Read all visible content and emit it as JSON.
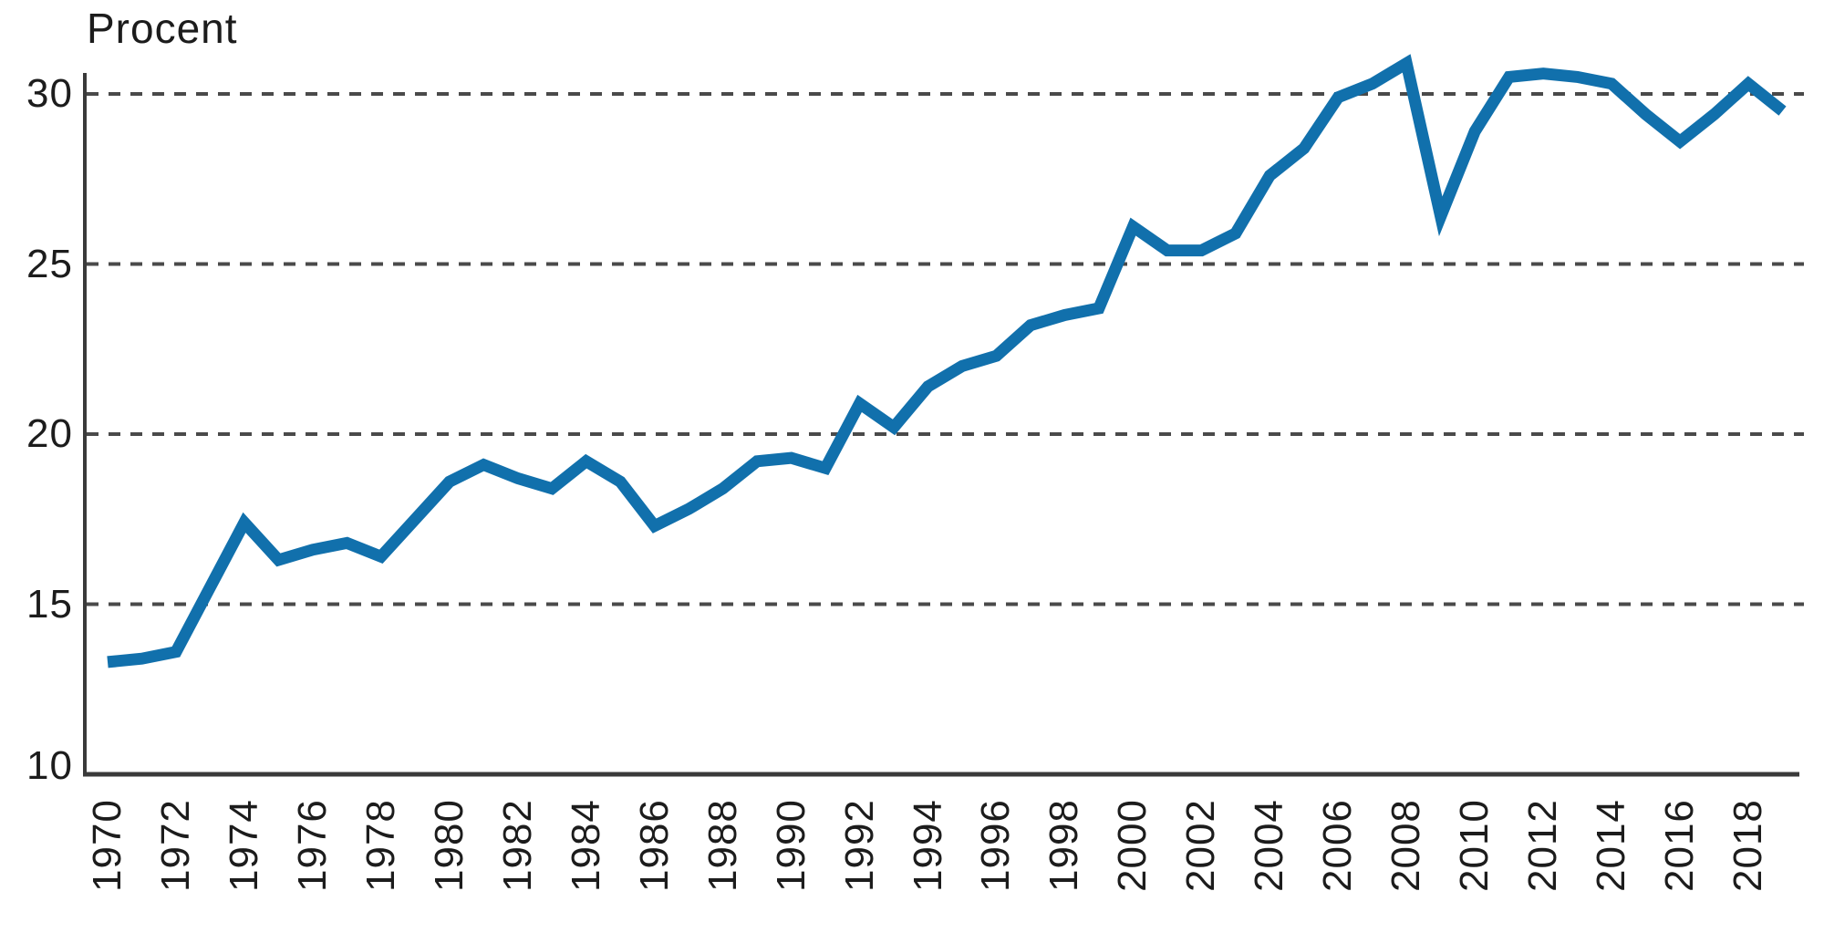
{
  "colors": {
    "line": "#1170AC",
    "axis": "#3A3A3A",
    "grid": "#4A4A4A",
    "text": "#1C1C1C",
    "background": "#FFFFFF"
  },
  "chart_data": {
    "type": "line",
    "title": "Procent",
    "xlabel": "",
    "ylabel": "Procent",
    "x": [
      1970,
      1971,
      1972,
      1973,
      1974,
      1975,
      1976,
      1977,
      1978,
      1979,
      1980,
      1981,
      1982,
      1983,
      1984,
      1985,
      1986,
      1987,
      1988,
      1989,
      1990,
      1991,
      1992,
      1993,
      1994,
      1995,
      1996,
      1997,
      1998,
      1999,
      2000,
      2001,
      2002,
      2003,
      2004,
      2005,
      2006,
      2007,
      2008,
      2009,
      2010,
      2011,
      2012,
      2013,
      2014,
      2015,
      2016,
      2017,
      2018,
      2019
    ],
    "values": [
      13.3,
      13.4,
      13.6,
      15.5,
      17.4,
      16.3,
      16.6,
      16.8,
      16.4,
      17.5,
      18.6,
      19.1,
      18.7,
      18.4,
      19.2,
      18.6,
      17.3,
      17.8,
      18.4,
      19.2,
      19.3,
      19.0,
      20.9,
      20.2,
      21.4,
      22.0,
      22.3,
      23.2,
      23.5,
      23.7,
      26.1,
      25.4,
      25.4,
      25.9,
      27.6,
      28.4,
      29.9,
      30.3,
      30.9,
      26.4,
      28.9,
      30.5,
      30.6,
      30.5,
      30.3,
      29.4,
      28.6,
      29.4,
      30.3,
      29.5
    ],
    "ylim": [
      10,
      31
    ],
    "yticks": [
      10,
      15,
      20,
      25,
      30
    ],
    "ytick_labels": [
      "10",
      "15",
      "20",
      "25",
      "30"
    ],
    "xtick_labels": [
      "1970",
      "1972",
      "1974",
      "1976",
      "1978",
      "1980",
      "1982",
      "1984",
      "1986",
      "1988",
      "1990",
      "1992",
      "1994",
      "1996",
      "1998",
      "2000",
      "2002",
      "2004",
      "2006",
      "2008",
      "2010",
      "2012",
      "2014",
      "2016",
      "2018"
    ],
    "gridlines_at": [
      15,
      20,
      25,
      30
    ],
    "grid_style": "dashed horizontal",
    "legend": "none"
  }
}
